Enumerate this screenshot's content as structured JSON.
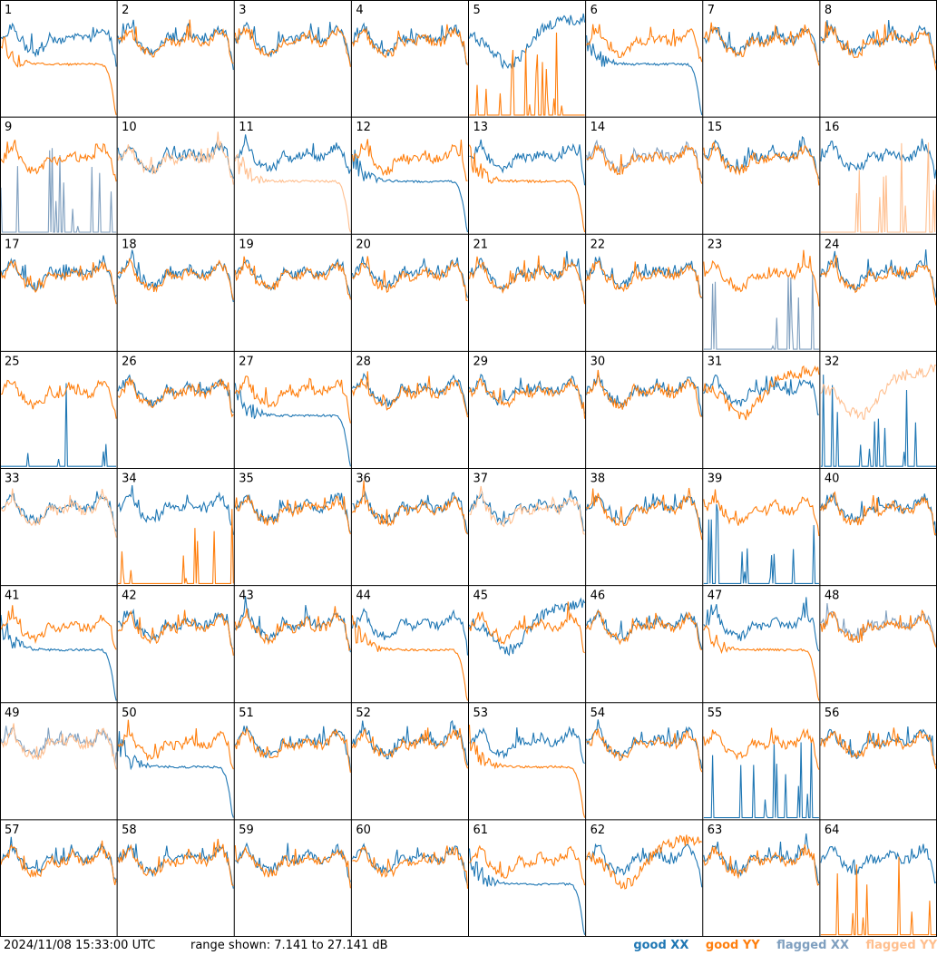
{
  "chart_data": {
    "type": "line",
    "layout": "small-multiples 8x8",
    "panel_labels": [
      "1",
      "2",
      "3",
      "4",
      "5",
      "6",
      "7",
      "8",
      "9",
      "10",
      "11",
      "12",
      "13",
      "14",
      "15",
      "16",
      "17",
      "18",
      "19",
      "20",
      "21",
      "22",
      "23",
      "24",
      "25",
      "26",
      "27",
      "28",
      "29",
      "30",
      "31",
      "32",
      "33",
      "34",
      "35",
      "36",
      "37",
      "38",
      "39",
      "40",
      "41",
      "42",
      "43",
      "44",
      "45",
      "46",
      "47",
      "48",
      "49",
      "50",
      "51",
      "52",
      "53",
      "54",
      "55",
      "56",
      "57",
      "58",
      "59",
      "60",
      "61",
      "62",
      "63",
      "64"
    ],
    "ylim": [
      7.141,
      27.141
    ],
    "series": [
      {
        "name": "good XX",
        "color": "#1f77b4"
      },
      {
        "name": "good YY",
        "color": "#ff7f0e"
      },
      {
        "name": "flagged XX",
        "color": "#7f9fbf"
      },
      {
        "name": "flagged YY",
        "color": "#ffbf8f"
      }
    ],
    "panels": {
      "1": {
        "xx": "good",
        "yy": "good",
        "yy_shape": "decay"
      },
      "5": {
        "xx": "good",
        "xx_shape": "dip",
        "yy": "good",
        "yy_shape": "spikes"
      },
      "6": {
        "xx": "good",
        "xx_shape": "decay",
        "yy": "good"
      },
      "9": {
        "xx": "flagged",
        "xx_shape": "spikes",
        "yy": "good"
      },
      "10": {
        "xx": "good",
        "yy": "flagged"
      },
      "11": {
        "xx": "good",
        "yy": "flagged",
        "yy_shape": "decay"
      },
      "12": {
        "xx": "good",
        "xx_shape": "decay",
        "yy": "good"
      },
      "13": {
        "xx": "good",
        "yy": "good",
        "yy_shape": "decay"
      },
      "14": {
        "xx": "flagged",
        "yy": "good"
      },
      "16": {
        "xx": "good",
        "yy": "flagged",
        "yy_shape": "spikes"
      },
      "23": {
        "xx": "flagged",
        "xx_shape": "spikes",
        "yy": "good"
      },
      "25": {
        "xx": "good",
        "xx_shape": "spikes",
        "yy": "good"
      },
      "27": {
        "xx": "good",
        "xx_shape": "decay",
        "yy": "good"
      },
      "31": {
        "xx": "good",
        "yy": "good",
        "yy_shape": "dip"
      },
      "32": {
        "xx": "good",
        "xx_shape": "spikes",
        "yy": "flagged",
        "yy_shape": "dip"
      },
      "33": {
        "xx": "good",
        "yy": "flagged"
      },
      "34": {
        "xx": "good",
        "yy": "good",
        "yy_shape": "spikes"
      },
      "37": {
        "xx": "good",
        "yy": "flagged"
      },
      "39": {
        "xx": "good",
        "xx_shape": "spikes",
        "yy": "good"
      },
      "41": {
        "xx": "good",
        "xx_shape": "decay",
        "yy": "good"
      },
      "44": {
        "xx": "good",
        "yy": "good",
        "yy_shape": "decay"
      },
      "45": {
        "xx": "good",
        "xx_shape": "dip",
        "yy": "good"
      },
      "47": {
        "xx": "good",
        "yy": "good",
        "yy_shape": "decay"
      },
      "48": {
        "xx": "flagged",
        "yy": "good"
      },
      "49": {
        "xx": "flagged",
        "yy": "flagged"
      },
      "50": {
        "xx": "good",
        "xx_shape": "decay",
        "yy": "good"
      },
      "53": {
        "xx": "good",
        "yy": "good",
        "yy_shape": "decay"
      },
      "55": {
        "xx": "good",
        "xx_shape": "spikes",
        "yy": "good"
      },
      "61": {
        "xx": "good",
        "xx_shape": "decay",
        "yy": "good"
      },
      "62": {
        "xx": "good",
        "yy": "good",
        "yy_shape": "dip"
      },
      "64": {
        "xx": "good",
        "yy": "good",
        "yy_shape": "spikes"
      }
    }
  },
  "footer": {
    "timestamp": "2024/11/08 15:33:00 UTC",
    "range": "range shown: 7.141 to 27.141 dB"
  },
  "legend": {
    "good_xx": "good XX",
    "good_yy": "good YY",
    "flagged_xx": "flagged XX",
    "flagged_yy": "flagged YY"
  }
}
